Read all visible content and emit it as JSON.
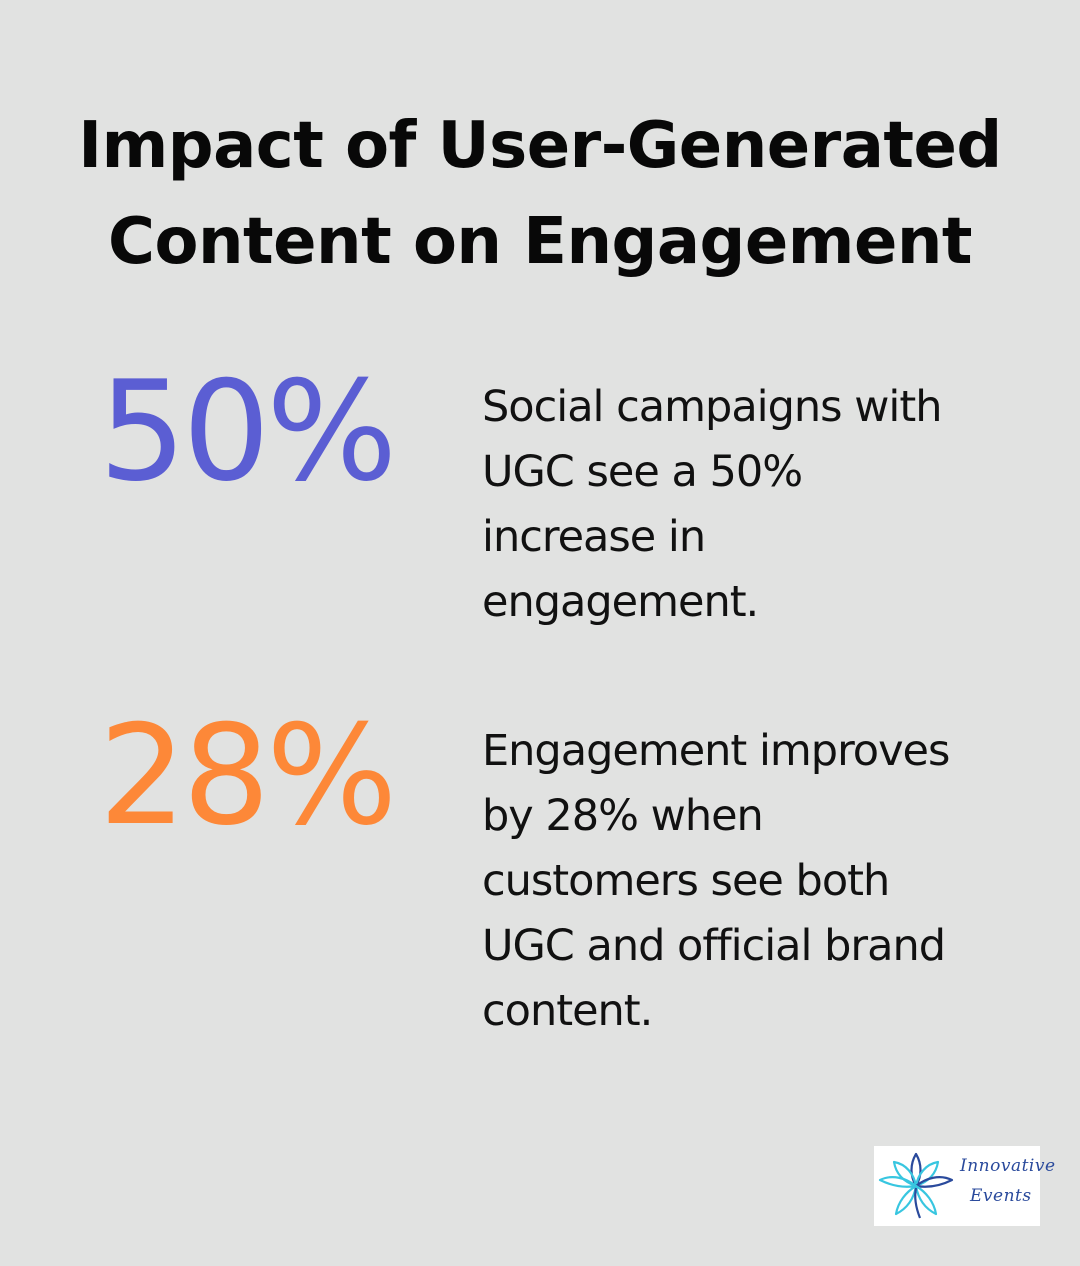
{
  "title_line1": "Impact of User-Generated",
  "title_line2": "Content on Engagement",
  "stats": [
    {
      "value": "50%",
      "color": "#5b5ed3",
      "description": [
        "Social campaigns with",
        "UGC see a 50%",
        "increase in",
        "engagement."
      ]
    },
    {
      "value": "28%",
      "color": "#fd8838",
      "description": [
        "Engagement improves",
        "by 28% when",
        "customers see both",
        "UGC and official brand",
        "content."
      ]
    }
  ],
  "logo": {
    "line1": "Innovative",
    "line2": "Events",
    "icon": "lotus-flower-icon",
    "colors": [
      "#38c6e0",
      "#2a4a9c"
    ]
  }
}
